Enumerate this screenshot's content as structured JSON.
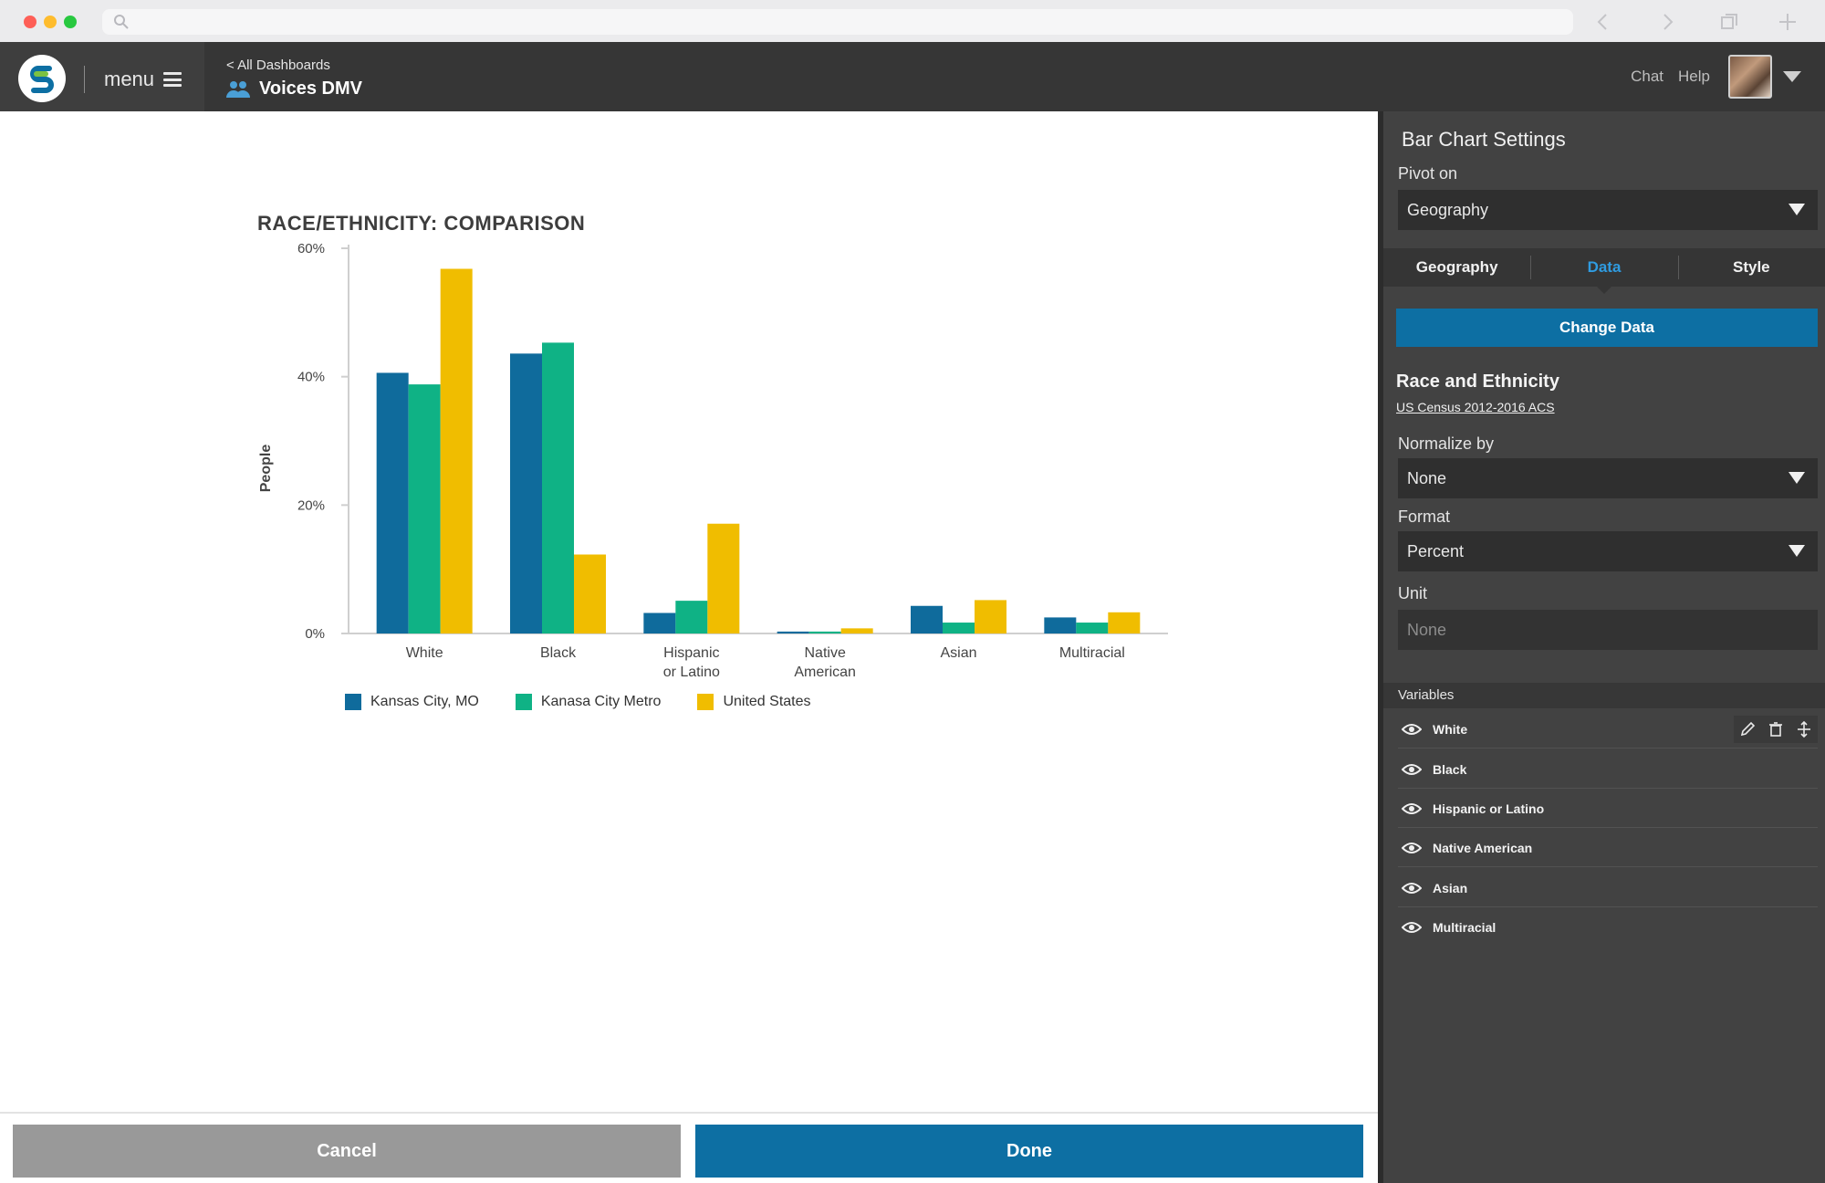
{
  "header": {
    "menu_label": "menu",
    "back_link": "< All Dashboards",
    "dashboard_title": "Voices DMV",
    "chat_label": "Chat",
    "help_label": "Help"
  },
  "chart": {
    "title": "RACE/ETHNICITY: COMPARISON",
    "ylabel": "People"
  },
  "chart_data": {
    "type": "bar",
    "title": "RACE/ETHNICITY: COMPARISON",
    "ylabel": "People",
    "xlabel": "",
    "categories": [
      [
        "White"
      ],
      [
        "Black"
      ],
      [
        "Hispanic",
        "or Latino"
      ],
      [
        "Native",
        "American"
      ],
      [
        "Asian"
      ],
      [
        "Multiracial"
      ]
    ],
    "ylim": [
      0,
      60
    ],
    "yticks": [
      "0%",
      "20%",
      "40%",
      "60%"
    ],
    "legend_position": "bottom-left",
    "series": [
      {
        "name": "Kansas City, MO",
        "color": "#0f6b9c",
        "values": [
          40.6,
          43.6,
          3.2,
          0.3,
          4.3,
          2.5
        ]
      },
      {
        "name": "Kanasa City Metro",
        "color": "#0fb285",
        "values": [
          38.8,
          45.3,
          5.1,
          0.3,
          1.7,
          1.7
        ]
      },
      {
        "name": "United States",
        "color": "#f0bd00",
        "values": [
          56.8,
          12.3,
          17.1,
          0.8,
          5.2,
          3.3
        ]
      }
    ]
  },
  "footer": {
    "cancel_label": "Cancel",
    "done_label": "Done"
  },
  "panel": {
    "title": "Bar Chart Settings",
    "pivot_label": "Pivot on",
    "pivot_value": "Geography",
    "tabs": [
      {
        "label": "Geography",
        "active": false
      },
      {
        "label": "Data",
        "active": true
      },
      {
        "label": "Style",
        "active": false
      }
    ],
    "change_data_label": "Change Data",
    "dataset_name": "Race and Ethnicity",
    "dataset_source": "US Census 2012-2016 ACS",
    "normalize_label": "Normalize by",
    "normalize_value": "None",
    "format_label": "Format",
    "format_value": "Percent",
    "unit_label": "Unit",
    "unit_placeholder": "None",
    "variables_header": "Variables",
    "variables": [
      {
        "label": "White"
      },
      {
        "label": "Black"
      },
      {
        "label": "Hispanic or Latino"
      },
      {
        "label": "Native American"
      },
      {
        "label": "Asian"
      },
      {
        "label": "Multiracial"
      }
    ]
  },
  "colors": {
    "accent_blue": "#0d6fa3",
    "active_tab": "#2f9be0",
    "header_bg": "#363636",
    "panel_bg": "#424242"
  },
  "icons": {
    "logo": "brand-logo-icon",
    "menu": "hamburger-icon",
    "dashboard": "people-icon",
    "variable_visibility": "eye-icon",
    "edit": "pencil-icon",
    "delete": "trash-icon",
    "reorder": "move-icon"
  }
}
